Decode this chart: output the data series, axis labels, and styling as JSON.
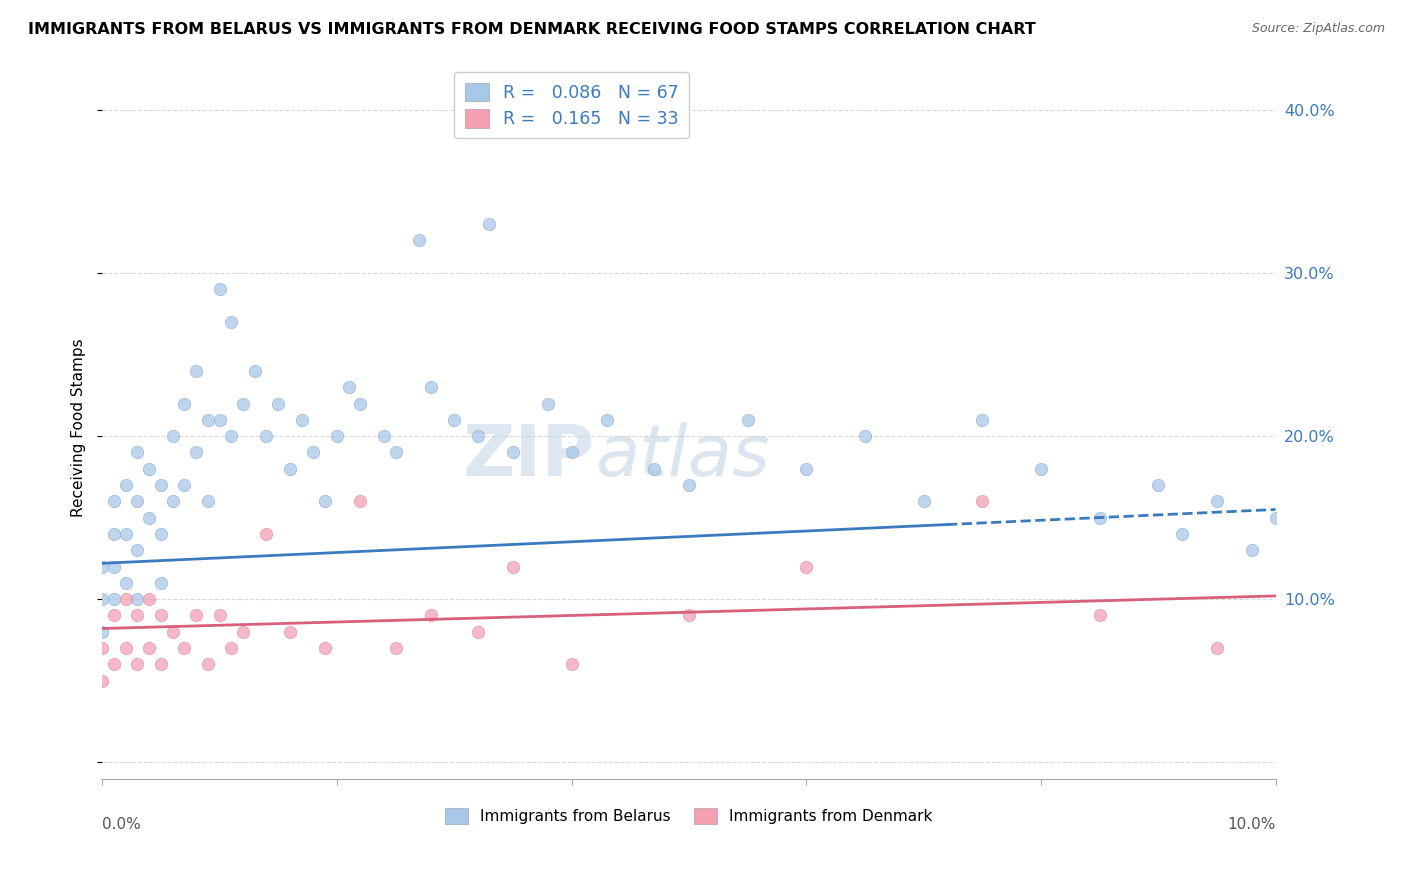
{
  "title": "IMMIGRANTS FROM BELARUS VS IMMIGRANTS FROM DENMARK RECEIVING FOOD STAMPS CORRELATION CHART",
  "source": "Source: ZipAtlas.com",
  "ylabel": "Receiving Food Stamps",
  "xlim": [
    0.0,
    0.1
  ],
  "ylim": [
    -0.01,
    0.42
  ],
  "watermark_zip": "ZIP",
  "watermark_atlas": "atlas",
  "color_belarus": "#a8c8e8",
  "color_denmark": "#f4a0b0",
  "color_trendline_belarus": "#3a7abf",
  "color_trendline_denmark": "#d9607a",
  "trend_split_x": 0.072,
  "belarus_x": [
    0.0,
    0.0,
    0.0,
    0.001,
    0.001,
    0.001,
    0.001,
    0.002,
    0.002,
    0.002,
    0.003,
    0.003,
    0.003,
    0.003,
    0.004,
    0.004,
    0.005,
    0.005,
    0.005,
    0.006,
    0.006,
    0.007,
    0.007,
    0.008,
    0.008,
    0.009,
    0.009,
    0.01,
    0.01,
    0.011,
    0.011,
    0.012,
    0.013,
    0.014,
    0.015,
    0.016,
    0.017,
    0.018,
    0.019,
    0.02,
    0.021,
    0.022,
    0.024,
    0.025,
    0.027,
    0.028,
    0.03,
    0.032,
    0.033,
    0.035,
    0.038,
    0.04,
    0.043,
    0.047,
    0.05,
    0.055,
    0.06,
    0.065,
    0.07,
    0.075,
    0.08,
    0.085,
    0.09,
    0.092,
    0.095,
    0.098,
    0.1
  ],
  "belarus_y": [
    0.12,
    0.1,
    0.08,
    0.16,
    0.14,
    0.12,
    0.1,
    0.17,
    0.14,
    0.11,
    0.19,
    0.16,
    0.13,
    0.1,
    0.18,
    0.15,
    0.17,
    0.14,
    0.11,
    0.2,
    0.16,
    0.22,
    0.17,
    0.24,
    0.19,
    0.21,
    0.16,
    0.29,
    0.21,
    0.27,
    0.2,
    0.22,
    0.24,
    0.2,
    0.22,
    0.18,
    0.21,
    0.19,
    0.16,
    0.2,
    0.23,
    0.22,
    0.2,
    0.19,
    0.32,
    0.23,
    0.21,
    0.2,
    0.33,
    0.19,
    0.22,
    0.19,
    0.21,
    0.18,
    0.17,
    0.21,
    0.18,
    0.2,
    0.16,
    0.21,
    0.18,
    0.15,
    0.17,
    0.14,
    0.16,
    0.13,
    0.15
  ],
  "denmark_x": [
    0.0,
    0.0,
    0.001,
    0.001,
    0.002,
    0.002,
    0.003,
    0.003,
    0.004,
    0.004,
    0.005,
    0.005,
    0.006,
    0.007,
    0.008,
    0.009,
    0.01,
    0.011,
    0.012,
    0.014,
    0.016,
    0.019,
    0.022,
    0.025,
    0.028,
    0.032,
    0.035,
    0.04,
    0.05,
    0.06,
    0.075,
    0.085,
    0.095
  ],
  "denmark_y": [
    0.07,
    0.05,
    0.09,
    0.06,
    0.1,
    0.07,
    0.09,
    0.06,
    0.1,
    0.07,
    0.09,
    0.06,
    0.08,
    0.07,
    0.09,
    0.06,
    0.09,
    0.07,
    0.08,
    0.14,
    0.08,
    0.07,
    0.16,
    0.07,
    0.09,
    0.08,
    0.12,
    0.06,
    0.09,
    0.12,
    0.16,
    0.09,
    0.07
  ],
  "trend_belarus_x0": 0.0,
  "trend_belarus_y0": 0.122,
  "trend_belarus_x1": 0.1,
  "trend_belarus_y1": 0.155,
  "trend_denmark_x0": 0.0,
  "trend_denmark_y0": 0.082,
  "trend_denmark_x1": 0.1,
  "trend_denmark_y1": 0.102
}
